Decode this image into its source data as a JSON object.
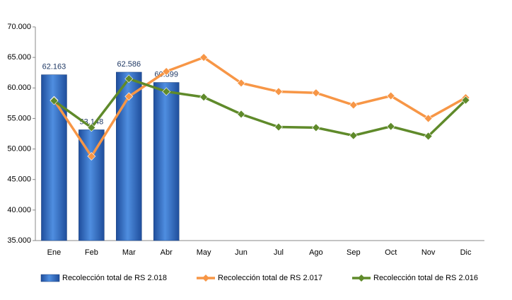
{
  "chart_data": {
    "type": "bar",
    "categories": [
      "Ene",
      "Feb",
      "Mar",
      "Abr",
      "May",
      "Jun",
      "Jul",
      "Ago",
      "Sep",
      "Oct",
      "Nov",
      "Dic"
    ],
    "series": [
      {
        "name": "Recolección total de RS 2.018",
        "type": "bar",
        "color": "#2e6fcc",
        "values": [
          62163,
          53148,
          62586,
          60899,
          null,
          null,
          null,
          null,
          null,
          null,
          null,
          null
        ],
        "value_labels": [
          "62.163",
          "53.148",
          "62.586",
          "60.899",
          null,
          null,
          null,
          null,
          null,
          null,
          null,
          null
        ]
      },
      {
        "name": "Recolección total de RS 2.017",
        "type": "line",
        "color": "#f79646",
        "values": [
          58000,
          48800,
          58600,
          62700,
          65000,
          60800,
          59400,
          59200,
          57200,
          58700,
          55000,
          58400
        ]
      },
      {
        "name": "Recolección total de RS 2.016",
        "type": "line",
        "color": "#5f8a2a",
        "values": [
          57900,
          53500,
          61500,
          59400,
          58500,
          55700,
          53600,
          53500,
          52200,
          53700,
          52100,
          58000
        ]
      }
    ],
    "ylim": [
      35000,
      70000
    ],
    "yticks": [
      {
        "value": 35000,
        "label": "35.000"
      },
      {
        "value": 40000,
        "label": "40.000"
      },
      {
        "value": 45000,
        "label": "45.000"
      },
      {
        "value": 50000,
        "label": "50.000"
      },
      {
        "value": 55000,
        "label": "55.000"
      },
      {
        "value": 60000,
        "label": "60.000"
      },
      {
        "value": 65000,
        "label": "65.000"
      },
      {
        "value": 70000,
        "label": "70.000"
      }
    ],
    "grid": false,
    "legend": "bottom"
  }
}
